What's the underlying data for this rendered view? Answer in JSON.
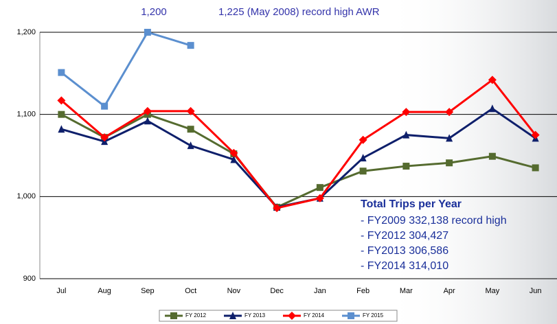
{
  "chart_data": {
    "type": "line",
    "annotations": [
      "1,200",
      "1,225 (May 2008) record high AWR"
    ],
    "note_title": "Total Trips per Year",
    "note_lines": [
      "- FY2009   332,138 record high",
      "- FY2012   304,427",
      "- FY2013   306,586",
      "- FY2014   314,010"
    ],
    "categories": [
      "Jul",
      "Aug",
      "Sep",
      "Oct",
      "Nov",
      "Dec",
      "Jan",
      "Feb",
      "Mar",
      "Apr",
      "May",
      "Jun"
    ],
    "series": [
      {
        "name": "FY 2012",
        "color": "#556b2f",
        "marker": "square",
        "values": [
          1100,
          1072,
          1100,
          1082,
          1052,
          987,
          1011,
          1031,
          1037,
          1041,
          1049,
          1035
        ]
      },
      {
        "name": "FY 2013",
        "color": "#0e1f6b",
        "marker": "triangle",
        "values": [
          1082,
          1067,
          1092,
          1062,
          1045,
          987,
          998,
          1047,
          1075,
          1071,
          1107,
          1071
        ]
      },
      {
        "name": "FY 2014",
        "color": "#ff0000",
        "marker": "diamond",
        "values": [
          1117,
          1072,
          1104,
          1104,
          1053,
          986,
          998,
          1069,
          1103,
          1103,
          1142,
          1075
        ]
      },
      {
        "name": "FY 2015",
        "color": "#5b8fcf",
        "marker": "square",
        "values": [
          1151,
          1110,
          1200,
          1184,
          null,
          null,
          null,
          null,
          null,
          null,
          null,
          null
        ]
      }
    ],
    "ylim": [
      900,
      1200
    ],
    "yticks": [
      {
        "value": 900,
        "label": "900"
      },
      {
        "value": 1000,
        "label": "1,000"
      },
      {
        "value": 1100,
        "label": "1,100"
      },
      {
        "value": 1200,
        "label": "1,200"
      }
    ],
    "grid": true
  }
}
